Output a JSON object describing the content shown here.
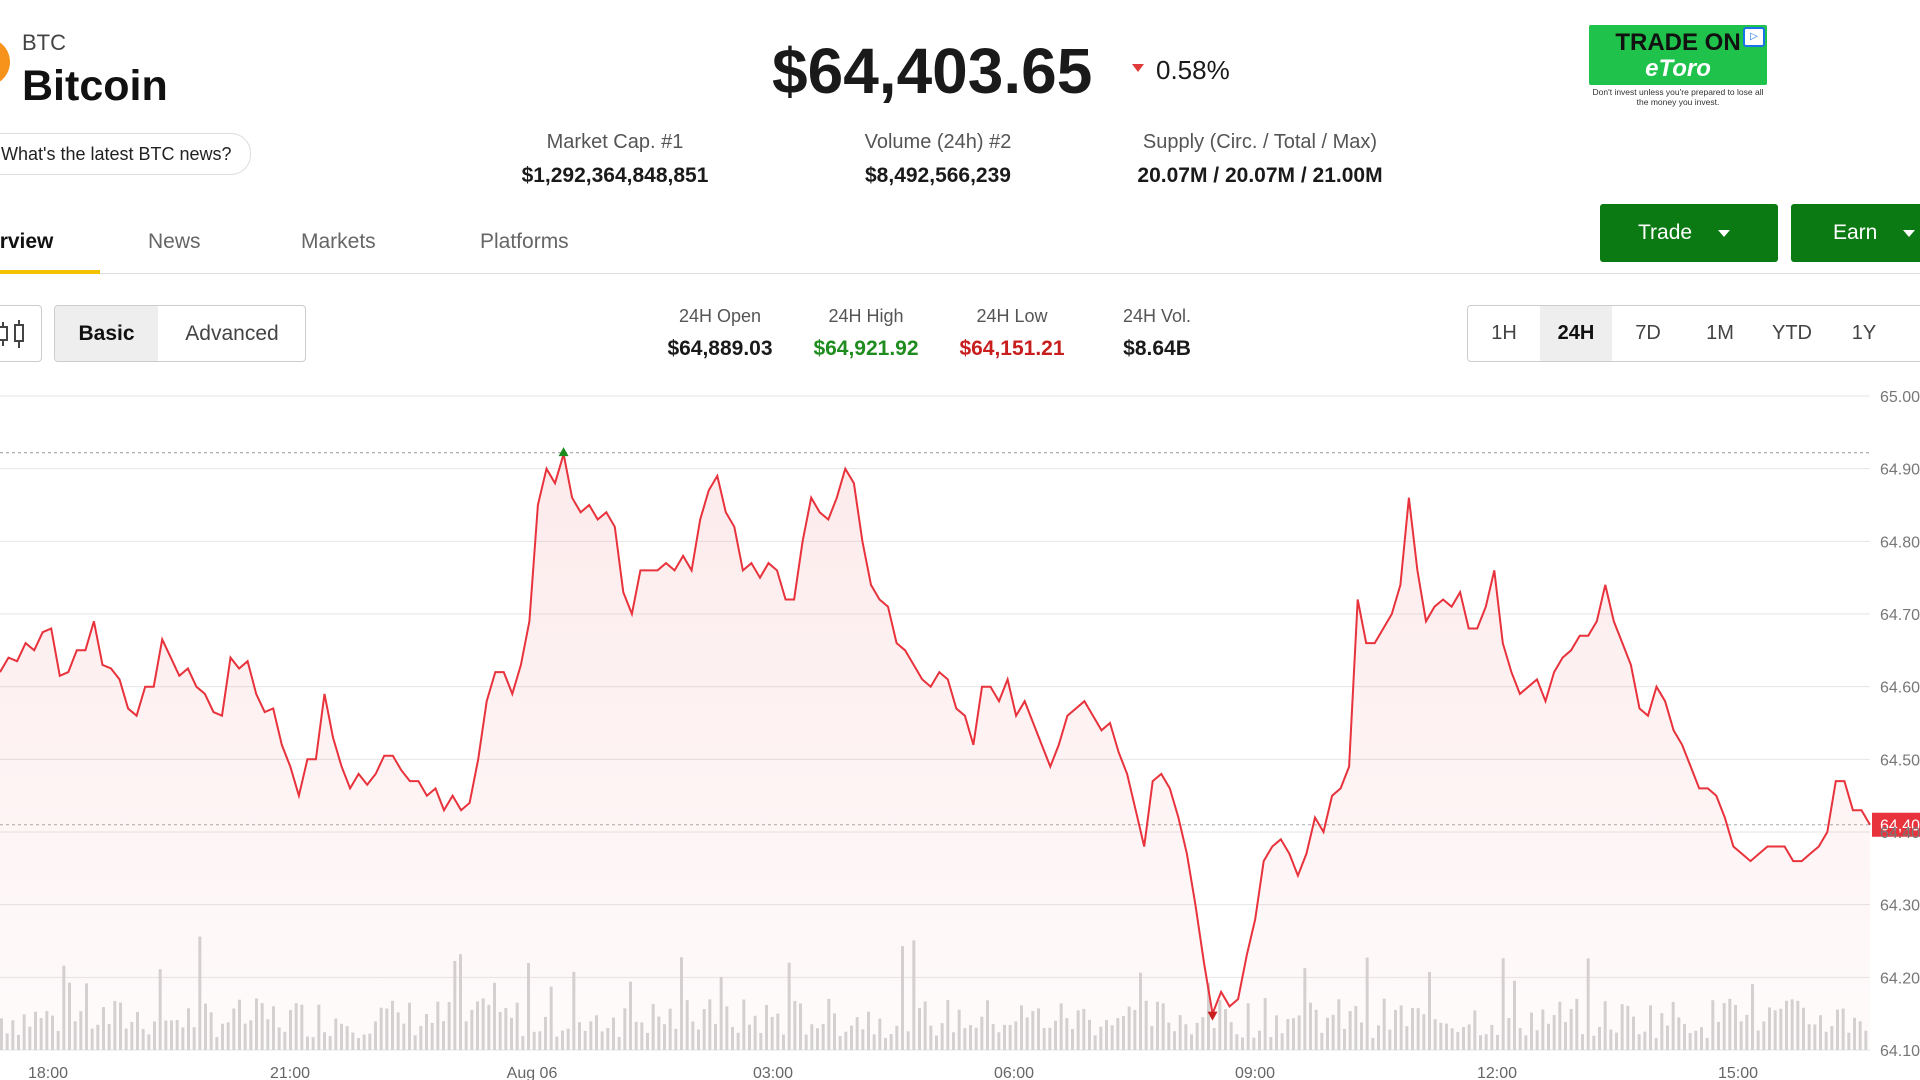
{
  "coin": {
    "ticker": "BTC",
    "name": "Bitcoin",
    "news_prompt": "What's the latest BTC news?",
    "logo_color": "#f7931a"
  },
  "price": {
    "value": "$64,403.65",
    "change": "0.58%",
    "direction": "down",
    "change_color": "#e03b3b"
  },
  "stats": [
    {
      "label": "Market Cap. #1",
      "value": "$1,292,364,848,851"
    },
    {
      "label": "Volume (24h) #2",
      "value": "$8,492,566,239"
    },
    {
      "label": "Supply (Circ. / Total / Max)",
      "value": "20.07M / 20.07M / 21.00M"
    }
  ],
  "ad": {
    "line1": "TRADE ON",
    "line2": "eToro",
    "disclaimer": "Don't invest unless you're prepared to lose all the money you invest.",
    "brand_color": "#1fc24a"
  },
  "actions": {
    "trade": "Trade",
    "earn": "Earn",
    "color": "#0b7a12"
  },
  "tabs": [
    "Overview",
    "News",
    "Markets",
    "Platforms"
  ],
  "active_tab": "Overview",
  "view_modes": {
    "basic": "Basic",
    "advanced": "Advanced",
    "selected": "Basic"
  },
  "metrics": [
    {
      "label": "24H Open",
      "value": "$64,889.03",
      "color": "#1a1a1a"
    },
    {
      "label": "24H High",
      "value": "$64,921.92",
      "color": "#1e8c1e"
    },
    {
      "label": "24H Low",
      "value": "$64,151.21",
      "color": "#c81e1e"
    },
    {
      "label": "24H Vol.",
      "value": "$8.64B",
      "color": "#1a1a1a"
    }
  ],
  "ranges": [
    "1H",
    "24H",
    "7D",
    "1M",
    "YTD",
    "1Y"
  ],
  "active_range": "24H",
  "chart_data": {
    "type": "line",
    "line_color": "#e8323c",
    "x_ticks": [
      "18:00",
      "21:00",
      "Aug 06",
      "03:00",
      "06:00",
      "09:00",
      "12:00",
      "15:00"
    ],
    "y_ticks": [
      "65.00",
      "64.90",
      "64.80",
      "64.70",
      "64.60",
      "64.50",
      "64.40",
      "64.30",
      "64.20",
      "64.10"
    ],
    "ylim": [
      64100,
      65000
    ],
    "price_tag": "64,40",
    "high": 64921.92,
    "low": 64151.21,
    "grid": true,
    "series": [
      {
        "values": [
          64620,
          64640,
          64635,
          64660,
          64650,
          64675,
          64680,
          64615,
          64620,
          64650,
          64650,
          64690,
          64630,
          64625,
          64610,
          64570,
          64560,
          64600,
          64600,
          64665,
          64640,
          64615,
          64625,
          64600,
          64590,
          64565,
          64560,
          64640,
          64625,
          64635,
          64590,
          64565,
          64570,
          64520,
          64490,
          64450,
          64500,
          64500,
          64590,
          64530,
          64490,
          64460,
          64480,
          64465,
          64480,
          64505,
          64505,
          64485,
          64470,
          64470,
          64450,
          64460,
          64430,
          64450,
          64430,
          64440,
          64500,
          64580,
          64620,
          64620,
          64590,
          64630,
          64690,
          64850,
          64900,
          64880,
          64920,
          64860,
          64840,
          64850,
          64830,
          64840,
          64820,
          64730,
          64700,
          64760,
          64760,
          64760,
          64770,
          64760,
          64780,
          64760,
          64830,
          64870,
          64890,
          64840,
          64820,
          64760,
          64770,
          64750,
          64770,
          64760,
          64720,
          64720,
          64800,
          64860,
          64840,
          64830,
          64860,
          64900,
          64880,
          64800,
          64740,
          64720,
          64710,
          64660,
          64650,
          64630,
          64610,
          64600,
          64620,
          64610,
          64570,
          64560,
          64520,
          64600,
          64600,
          64580,
          64610,
          64560,
          64580,
          64550,
          64520,
          64490,
          64520,
          64560,
          64570,
          64580,
          64560,
          64540,
          64550,
          64510,
          64480,
          64430,
          64380,
          64470,
          64480,
          64460,
          64420,
          64370,
          64300,
          64220,
          64150,
          64180,
          64160,
          64170,
          64230,
          64280,
          64360,
          64380,
          64390,
          64370,
          64340,
          64370,
          64420,
          64400,
          64450,
          64460,
          64490,
          64720,
          64660,
          64660,
          64680,
          64700,
          64740,
          64860,
          64760,
          64690,
          64710,
          64720,
          64710,
          64730,
          64680,
          64680,
          64710,
          64760,
          64660,
          64620,
          64590,
          64600,
          64610,
          64580,
          64620,
          64640,
          64650,
          64670,
          64670,
          64690,
          64740,
          64690,
          64660,
          64630,
          64570,
          64560,
          64600,
          64580,
          64540,
          64520,
          64490,
          64460,
          64460,
          64450,
          64420,
          64380,
          64370,
          64360,
          64370,
          64380,
          64380,
          64380,
          64360,
          64360,
          64370,
          64380,
          64400,
          64470,
          64470,
          64430,
          64430,
          64410
        ]
      }
    ],
    "volume_bar_color": "#d4d4d4"
  }
}
